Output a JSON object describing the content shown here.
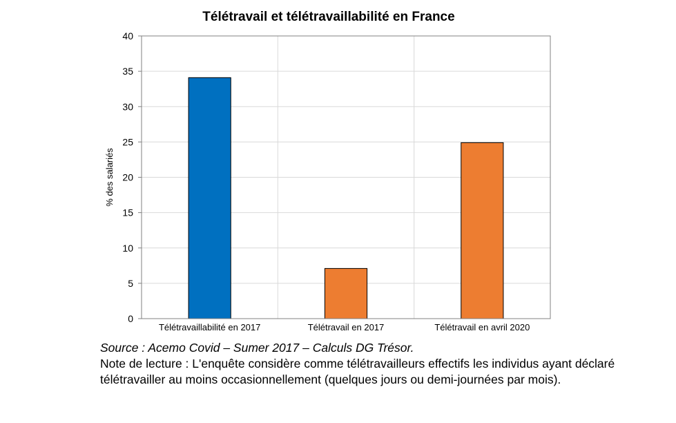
{
  "chart_data": {
    "type": "bar",
    "title": "Télétravail et télétravaillabilité en France",
    "ylabel": "% des salariés",
    "xlabel": "",
    "ylim": [
      0,
      40
    ],
    "yticks": [
      0,
      5,
      10,
      15,
      20,
      25,
      30,
      35,
      40
    ],
    "categories": [
      "Télétravaillabilité en 2017",
      "Télétravail en 2017",
      "Télétravail en avril 2020"
    ],
    "values": [
      34.1,
      7.1,
      24.9
    ],
    "bar_colors": [
      "#0070C0",
      "#ED7D31",
      "#ED7D31"
    ],
    "grid": true
  },
  "footer": {
    "source": "Source : Acemo Covid – Sumer 2017 – Calculs DG Trésor.",
    "note": "Note de lecture : L'enquête considère comme télétravailleurs effectifs les individus ayant déclaré télétravailler au moins occasionnellement (quelques jours ou demi-journées par mois)."
  }
}
